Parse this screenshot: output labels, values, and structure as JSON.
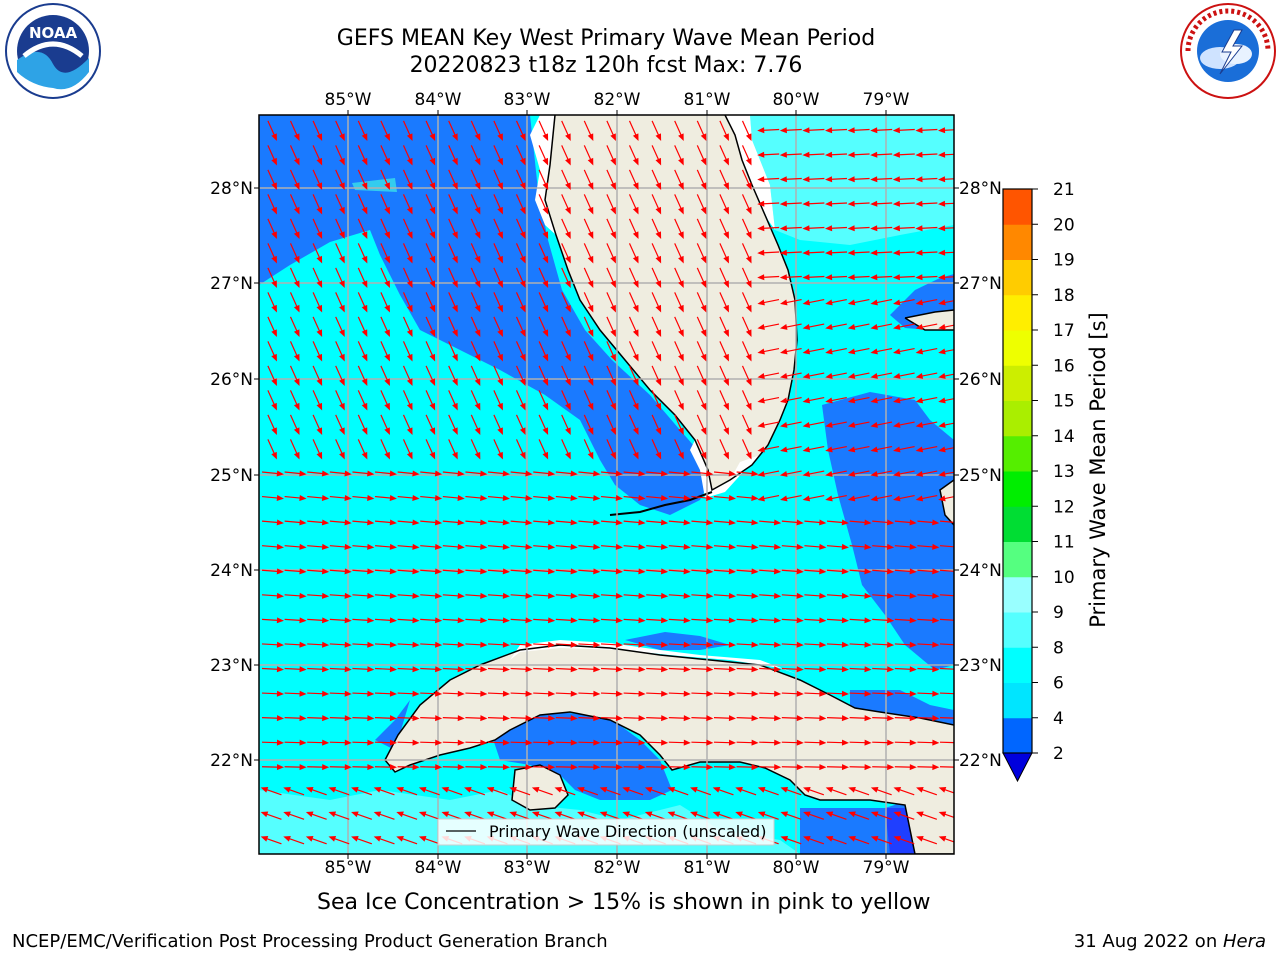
{
  "title_line1": "GEFS MEAN Key West Primary Wave Mean Period",
  "title_line2": "20220823 t18z 120h fcst   Max: 7.76",
  "lon_labels": [
    "85°W",
    "84°W",
    "83°W",
    "82°W",
    "81°W",
    "80°W",
    "79°W"
  ],
  "lat_labels": [
    "28°N",
    "27°N",
    "26°N",
    "25°N",
    "24°N",
    "23°N",
    "22°N"
  ],
  "legend_label": "Primary Wave Direction (unscaled)",
  "sea_ice_note": "Sea Ice Concentration > 15% is shown in pink to yellow",
  "footer_left": "NCEP/EMC/Verification Post Processing Product Generation Branch",
  "footer_right_date": "31 Aug 2022 on ",
  "footer_right_machine": "Hera",
  "colorbar": {
    "title": "Primary Wave Mean Period [s]",
    "ticks": [
      "2",
      "4",
      "6",
      "8",
      "9",
      "10",
      "11",
      "12",
      "13",
      "14",
      "15",
      "16",
      "17",
      "18",
      "19",
      "20",
      "21"
    ],
    "colors": [
      "#0066ff",
      "#00e5ff",
      "#00ffff",
      "#55ffff",
      "#99ffff",
      "#55ff80",
      "#00dd33",
      "#00ee00",
      "#55ee00",
      "#aaee00",
      "#ccee00",
      "#eeff00",
      "#ffee00",
      "#ffcc00",
      "#ff8800",
      "#ff5500",
      "#ff2200",
      "#ff0000"
    ],
    "under_color": "#0000dd"
  },
  "colors": {
    "land": "#efede0",
    "sea_light": "#00ffff",
    "sea_blue": "#1a7aff",
    "sea_deep": "#1f3fff",
    "arrow": "#ff0000",
    "grid": "#b0b0b0"
  },
  "logos": {
    "left": "NOAA",
    "right": "NATIONAL WEATHER SERVICE"
  }
}
